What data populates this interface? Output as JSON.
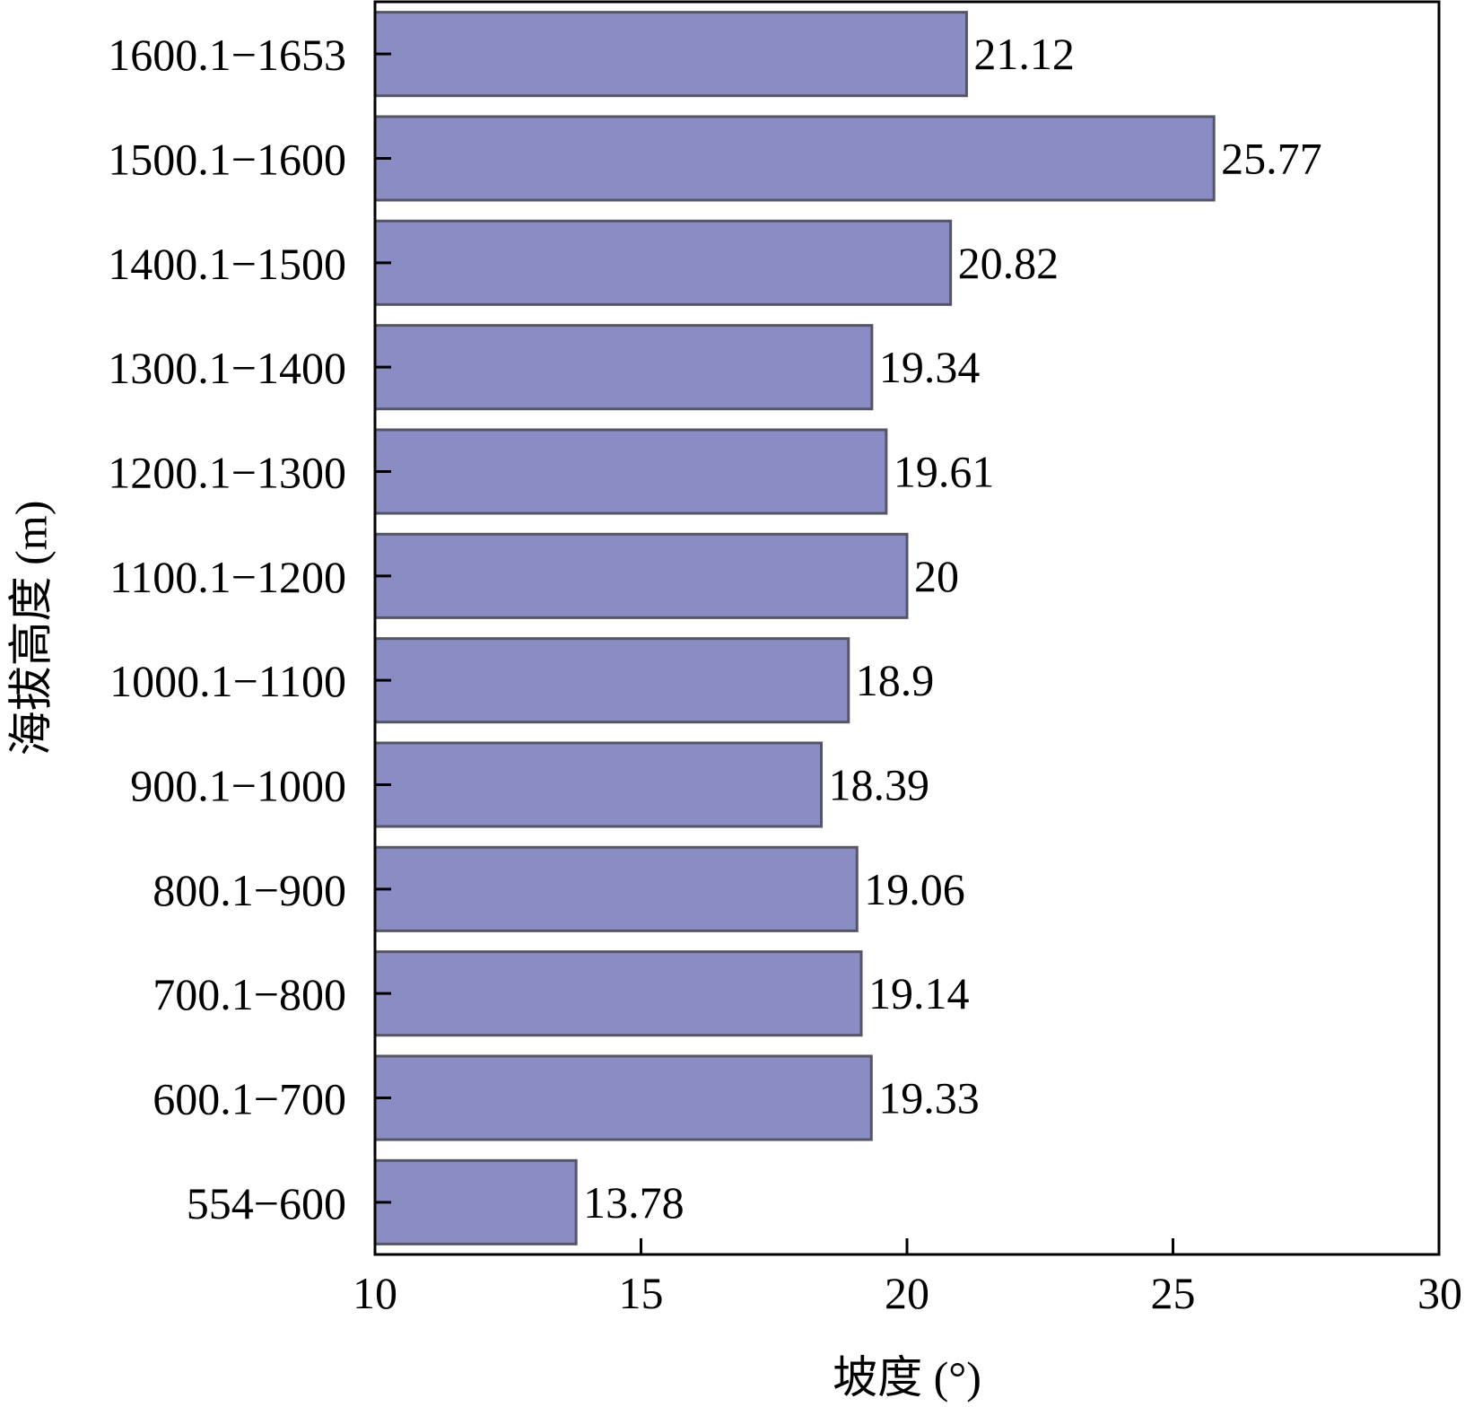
{
  "chart_data": {
    "type": "bar",
    "orientation": "horizontal",
    "categories": [
      "554−600",
      "600.1−700",
      "700.1−800",
      "800.1−900",
      "900.1−1000",
      "1000.1−1100",
      "1100.1−1200",
      "1200.1−1300",
      "1300.1−1400",
      "1400.1−1500",
      "1500.1−1600",
      "1600.1−1653"
    ],
    "values": [
      13.78,
      19.33,
      19.14,
      19.06,
      18.39,
      18.9,
      20,
      19.61,
      19.34,
      20.82,
      25.77,
      21.12
    ],
    "value_labels": [
      "13.78",
      "19.33",
      "19.14",
      "19.06",
      "18.39",
      "18.9",
      "20",
      "19.61",
      "19.34",
      "20.82",
      "25.77",
      "21.12"
    ],
    "xlabel": "坡度 (°)",
    "ylabel": "海拔高度 (m)",
    "xlim": [
      10,
      30
    ],
    "xticks": [
      10,
      15,
      20,
      25,
      30
    ],
    "grid": false,
    "bar_color": "#8a8cc4",
    "bar_edge_color": "#555566"
  }
}
